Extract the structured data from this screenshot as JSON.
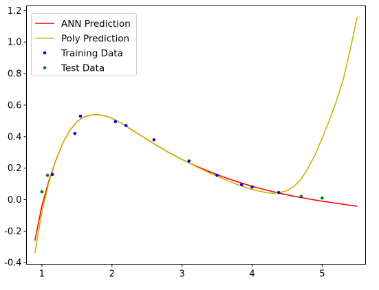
{
  "chart_data": {
    "type": "line",
    "title": "",
    "xlabel": "",
    "ylabel": "",
    "xlim": [
      0.78,
      5.62
    ],
    "ylim": [
      -0.41,
      1.23
    ],
    "xticks": [
      1,
      2,
      3,
      4,
      5
    ],
    "yticks": [
      -0.4,
      -0.2,
      0.0,
      0.2,
      0.4,
      0.6,
      0.8,
      1.0,
      1.2
    ],
    "grid": false,
    "legend_position": "top-left",
    "series": [
      {
        "name": "ANN Prediction",
        "kind": "line",
        "color": "#ff0000",
        "x": [
          0.9,
          1.0,
          1.1,
          1.2,
          1.3,
          1.4,
          1.5,
          1.6,
          1.7,
          1.8,
          1.9,
          2.0,
          2.1,
          2.2,
          2.4,
          2.6,
          2.8,
          3.0,
          3.2,
          3.4,
          3.6,
          3.8,
          4.0,
          4.2,
          4.4,
          4.6,
          4.8,
          5.0,
          5.2,
          5.5
        ],
        "y": [
          -0.26,
          -0.04,
          0.12,
          0.25,
          0.36,
          0.44,
          0.495,
          0.525,
          0.537,
          0.539,
          0.532,
          0.516,
          0.494,
          0.467,
          0.41,
          0.355,
          0.302,
          0.255,
          0.213,
          0.176,
          0.142,
          0.112,
          0.085,
          0.061,
          0.04,
          0.021,
          0.005,
          -0.01,
          -0.023,
          -0.042
        ]
      },
      {
        "name": "Poly Prediction",
        "kind": "line",
        "color": "#c8b400",
        "x": [
          0.9,
          1.0,
          1.1,
          1.2,
          1.3,
          1.4,
          1.5,
          1.6,
          1.7,
          1.8,
          1.9,
          2.0,
          2.1,
          2.2,
          2.4,
          2.6,
          2.8,
          3.0,
          3.2,
          3.4,
          3.6,
          3.8,
          4.0,
          4.2,
          4.3,
          4.4,
          4.5,
          4.6,
          4.7,
          4.8,
          4.9,
          5.0,
          5.1,
          5.2,
          5.3,
          5.4,
          5.5
        ],
        "y": [
          -0.34,
          -0.08,
          0.11,
          0.25,
          0.36,
          0.44,
          0.495,
          0.525,
          0.537,
          0.539,
          0.532,
          0.516,
          0.494,
          0.467,
          0.41,
          0.355,
          0.302,
          0.255,
          0.21,
          0.168,
          0.13,
          0.094,
          0.064,
          0.045,
          0.04,
          0.045,
          0.058,
          0.085,
          0.13,
          0.2,
          0.285,
          0.39,
          0.5,
          0.62,
          0.76,
          0.95,
          1.16
        ]
      },
      {
        "name": "Training Data",
        "kind": "scatter",
        "color": "#0000ff",
        "x": [
          1.15,
          1.47,
          1.55,
          2.05,
          2.2,
          2.6,
          3.1,
          3.5,
          3.85,
          4.0,
          4.38
        ],
        "y": [
          0.16,
          0.42,
          0.53,
          0.495,
          0.47,
          0.38,
          0.245,
          0.155,
          0.095,
          0.08,
          0.045
        ]
      },
      {
        "name": "Test Data",
        "kind": "scatter",
        "color": "#007f00",
        "x": [
          1.0,
          1.08,
          4.7,
          5.0
        ],
        "y": [
          0.05,
          0.155,
          0.02,
          0.01
        ]
      }
    ]
  }
}
